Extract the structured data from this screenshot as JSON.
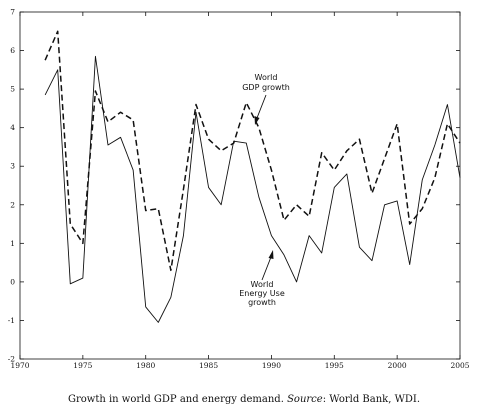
{
  "caption": {
    "text": "Growth in world GDP and energy demand.",
    "source_label": "Source",
    "source_text": ": World Bank, WDI."
  },
  "chart_data": {
    "type": "line",
    "xlim": [
      1970,
      2005
    ],
    "ylim": [
      -2,
      7
    ],
    "xticks": [
      1970,
      1975,
      1980,
      1985,
      1990,
      1995,
      2000,
      2005
    ],
    "yticks": [
      -2,
      -1,
      0,
      1,
      2,
      3,
      4,
      5,
      6,
      7
    ],
    "grid": false,
    "x": [
      1972,
      1973,
      1974,
      1975,
      1976,
      1977,
      1978,
      1979,
      1980,
      1981,
      1982,
      1983,
      1984,
      1985,
      1986,
      1987,
      1988,
      1989,
      1990,
      1991,
      1992,
      1993,
      1994,
      1995,
      1996,
      1997,
      1998,
      1999,
      2000,
      2001,
      2002,
      2003,
      2004,
      2005
    ],
    "series": [
      {
        "name": "World GDP growth",
        "style": "dashed",
        "color": "#111111",
        "values": [
          5.75,
          6.5,
          1.5,
          1.0,
          4.95,
          4.15,
          4.4,
          4.2,
          1.85,
          1.9,
          0.3,
          2.4,
          4.6,
          3.7,
          3.4,
          3.6,
          4.65,
          4.0,
          2.9,
          1.6,
          2.0,
          1.7,
          3.35,
          2.9,
          3.4,
          3.7,
          2.3,
          3.2,
          4.1,
          1.5,
          1.9,
          2.7,
          4.1,
          3.6
        ]
      },
      {
        "name": "World Energy Use growth",
        "style": "solid",
        "color": "#111111",
        "values": [
          4.85,
          5.5,
          -0.05,
          0.1,
          5.85,
          3.55,
          3.75,
          2.9,
          -0.65,
          -1.05,
          -0.4,
          1.2,
          4.4,
          2.45,
          2.0,
          3.65,
          3.6,
          2.2,
          1.2,
          0.7,
          0.0,
          1.2,
          0.75,
          2.45,
          2.8,
          0.9,
          0.55,
          2.0,
          2.1,
          0.45,
          2.65,
          3.55,
          4.6,
          2.7
        ]
      }
    ],
    "annotations": [
      {
        "lines": [
          "World",
          "GDP growth"
        ]
      },
      {
        "lines": [
          "World",
          "Energy Use",
          "growth"
        ]
      }
    ]
  }
}
